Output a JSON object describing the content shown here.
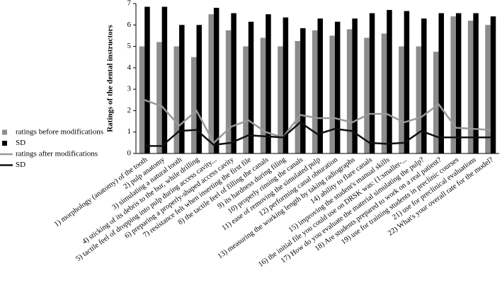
{
  "chart_data": {
    "type": "bar",
    "ylabel": "Ratings of the dental instructors",
    "categories": [
      "1) morphology (anatomy) of the tooth",
      "2) pulp anatomy",
      "3) simulating a natural tooth",
      "4) sticking of its debris to the bur, while drilling",
      "5) tactile feel of dropping into pulp during access cavity...",
      "6) preparing a properly-shaped access cavity",
      "7) resistance felt when inserting the first file",
      "8) the tactile feel of filling the canals",
      "9) its hardness during filing",
      "10) properly rinsing the canals",
      "11) ease of removing the simulated pulp",
      "12) performing canal obturation",
      "13) measuring the working length by taking radiographs",
      "14) ability to flare canals",
      "15) improving the student's manual skills",
      "16) the initial file you could use on DRSK was: (1:smaller-...",
      "17) How do you evaluate the material simulating the pulp?",
      "18) Are students prepared to work on a real patient?",
      "19) use for training students in preclinic courses",
      "21) use for preclinical evaluations",
      "22) What's your overall rate for the model?"
    ],
    "series": [
      {
        "name": "ratings before modifications",
        "type": "bar",
        "color": "#8c8c8c",
        "values": [
          5.0,
          5.2,
          5.0,
          4.5,
          6.5,
          5.75,
          5.0,
          5.4,
          5.0,
          5.25,
          5.75,
          5.5,
          5.8,
          5.4,
          5.6,
          5.0,
          5.0,
          4.75,
          6.4,
          6.2,
          6.0
        ]
      },
      {
        "name": "SD",
        "type": "bar",
        "color": "#000000",
        "values": [
          6.85,
          6.85,
          6.0,
          6.0,
          6.8,
          6.55,
          6.15,
          6.5,
          6.35,
          5.85,
          6.3,
          6.15,
          6.3,
          6.55,
          6.7,
          6.65,
          6.3,
          6.55,
          6.55,
          6.55,
          6.4
        ]
      },
      {
        "name": "ratings after modifications",
        "type": "line",
        "color": "#999999",
        "values": [
          2.5,
          2.2,
          1.3,
          2.0,
          0.5,
          1.25,
          1.55,
          1.0,
          0.75,
          1.8,
          1.65,
          1.65,
          1.45,
          1.85,
          1.85,
          1.45,
          1.7,
          2.3,
          1.2,
          1.15,
          1.1
        ]
      },
      {
        "name": "SD",
        "type": "line",
        "color": "#111111",
        "values": [
          0.35,
          0.35,
          1.05,
          1.1,
          0.4,
          0.5,
          0.85,
          0.8,
          0.75,
          1.45,
          0.9,
          1.15,
          1.05,
          0.5,
          0.45,
          0.5,
          1.05,
          0.75,
          0.75,
          0.75,
          0.75
        ]
      }
    ],
    "ylim": [
      0,
      7
    ],
    "yticks": [
      0,
      1,
      2,
      3,
      4,
      5,
      6,
      7
    ],
    "legend": "left"
  }
}
